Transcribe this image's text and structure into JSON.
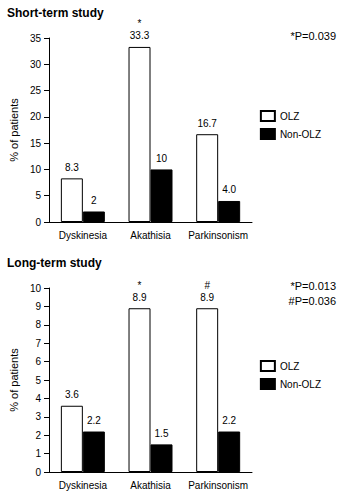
{
  "chart_data": [
    {
      "type": "bar",
      "title": "Short-term study",
      "y_label": "% of patients",
      "categories": [
        "Dyskinesia",
        "Akathisia",
        "Parkinsonism"
      ],
      "series": [
        {
          "name": "OLZ",
          "color": "#ffffff",
          "values": [
            8.3,
            33.3,
            16.7
          ],
          "value_labels": [
            "8.3",
            "33.3",
            "16.7"
          ]
        },
        {
          "name": "Non-OLZ",
          "color": "#000000",
          "values": [
            2,
            10,
            4
          ],
          "value_labels": [
            "2",
            "10",
            "4.0"
          ]
        }
      ],
      "ylim": [
        0,
        35
      ],
      "yticks": [
        0,
        5,
        10,
        15,
        20,
        25,
        30,
        35
      ],
      "grid": false,
      "legend": "right",
      "data_labels": true,
      "annotations": [
        {
          "text": "*",
          "category": "Akathisia",
          "series": "OLZ"
        },
        {
          "text": "*P=0.039"
        }
      ]
    },
    {
      "type": "bar",
      "title": "Long-term study",
      "y_label": "% of patients",
      "categories": [
        "Dyskinesia",
        "Akathisia",
        "Parkinsonism"
      ],
      "series": [
        {
          "name": "OLZ",
          "color": "#ffffff",
          "values": [
            3.6,
            8.9,
            8.9
          ],
          "value_labels": [
            "3.6",
            "8.9",
            "8.9"
          ]
        },
        {
          "name": "Non-OLZ",
          "color": "#000000",
          "values": [
            2.2,
            1.5,
            2.2
          ],
          "value_labels": [
            "2.2",
            "1.5",
            "2.2"
          ]
        }
      ],
      "ylim": [
        0,
        10
      ],
      "yticks": [
        0,
        1,
        2,
        3,
        4,
        5,
        6,
        7,
        8,
        9,
        10
      ],
      "grid": false,
      "legend": "right",
      "data_labels": true,
      "annotations": [
        {
          "text": "*",
          "category": "Akathisia",
          "series": "OLZ"
        },
        {
          "text": "#",
          "category": "Parkinsonism",
          "series": "OLZ"
        },
        {
          "text": "*P=0.013"
        },
        {
          "text": "#P=0.036"
        }
      ]
    }
  ]
}
